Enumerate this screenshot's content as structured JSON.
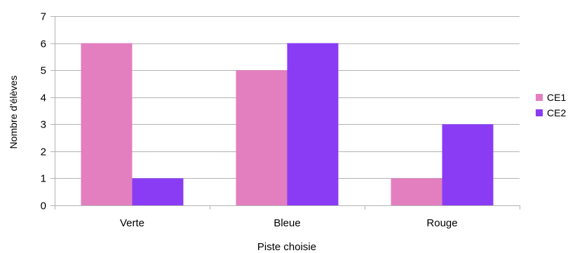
{
  "chart_data": {
    "type": "bar",
    "title": "",
    "xlabel": "Piste choisie",
    "ylabel": "Nombre d'élèves",
    "categories": [
      "Verte",
      "Bleue",
      "Rouge"
    ],
    "series": [
      {
        "name": "CE1",
        "values": [
          6,
          5,
          1
        ],
        "color": "#e37fbf"
      },
      {
        "name": "CE2",
        "values": [
          1,
          6,
          3
        ],
        "color": "#8a3cf4"
      }
    ],
    "ylim": [
      0,
      7
    ],
    "yticks": [
      0,
      1,
      2,
      3,
      4,
      5,
      6,
      7
    ],
    "grid": true,
    "legend": "right"
  }
}
